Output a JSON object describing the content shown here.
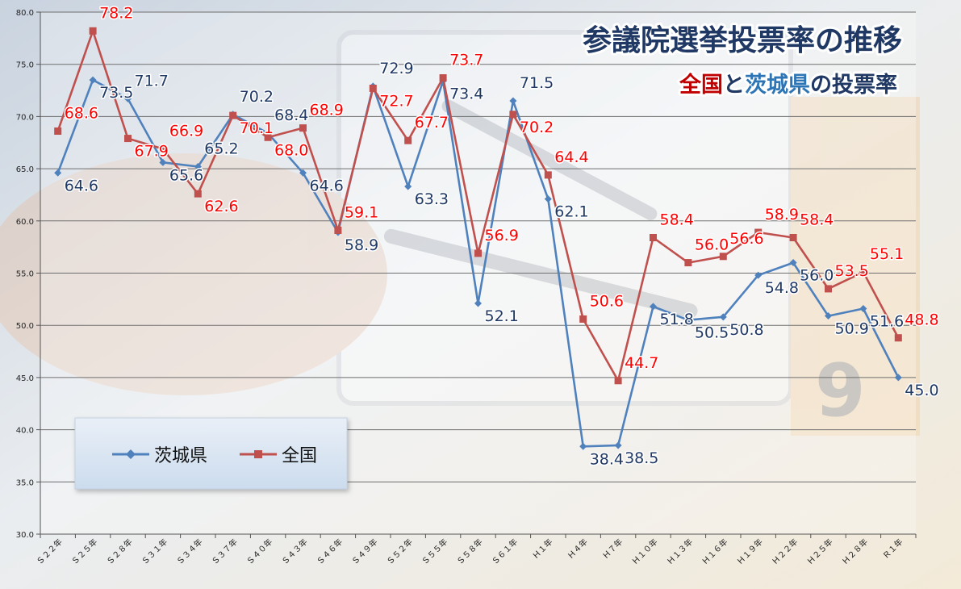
{
  "chart_data": {
    "type": "line",
    "title": "参議院選挙投票率の推移",
    "subtitle": {
      "part1": "全国",
      "part2": "と",
      "part3": "茨城県",
      "part4": "の投票率"
    },
    "xlabel": "",
    "ylabel": "",
    "ylim": [
      30.0,
      80.0
    ],
    "ytick_step": 5,
    "ytick_labels": [
      "30.0",
      "35.0",
      "40.0",
      "45.0",
      "50.0",
      "55.0",
      "60.0",
      "65.0",
      "70.0",
      "75.0",
      "80.0"
    ],
    "grid": true,
    "legend_position": "bottom-left",
    "categories": [
      "S22年",
      "S25年",
      "S28年",
      "S31年",
      "S34年",
      "S37年",
      "S40年",
      "S43年",
      "S46年",
      "S49年",
      "S52年",
      "S55年",
      "S58年",
      "S61年",
      "H1年",
      "H4年",
      "H7年",
      "H10年",
      "H13年",
      "H16年",
      "H19年",
      "H22年",
      "H25年",
      "H28年",
      "R1年"
    ],
    "category_labels": [
      "Ｓ２２年",
      "Ｓ２５年",
      "Ｓ２８年",
      "Ｓ３１年",
      "Ｓ３４年",
      "Ｓ３７年",
      "Ｓ４０年",
      "Ｓ４３年",
      "Ｓ４６年",
      "Ｓ４９年",
      "Ｓ５２年",
      "Ｓ５５年",
      "Ｓ５８年",
      "Ｓ６１年",
      "Ｈ１年",
      "Ｈ４年",
      "Ｈ７年",
      "Ｈ１０年",
      "Ｈ１３年",
      "Ｈ１６年",
      "Ｈ１９年",
      "Ｈ２２年",
      "Ｈ２５年",
      "Ｈ２８年",
      "Ｒ１年"
    ],
    "series": [
      {
        "name": "茨城県",
        "color": "#4f81bd",
        "label_color": "#1f3864",
        "marker": "diamond",
        "values": [
          64.6,
          73.5,
          71.7,
          65.6,
          65.2,
          70.2,
          68.4,
          64.6,
          58.9,
          72.9,
          63.3,
          73.4,
          52.1,
          71.5,
          62.1,
          38.4,
          38.5,
          51.8,
          50.5,
          50.8,
          54.8,
          56.0,
          50.9,
          51.6,
          45.0
        ],
        "labels": [
          "64.6",
          "73.5",
          "71.7",
          "65.6",
          "65.2",
          "70.2",
          "68.4",
          "64.6",
          "58.9",
          "72.9",
          "63.3",
          "73.4",
          "52.1",
          "71.5",
          "62.1",
          "38.4",
          "38.5",
          "51.8",
          "50.5",
          "50.8",
          "54.8",
          "56.0",
          "50.9",
          "51.6",
          "45.0"
        ]
      },
      {
        "name": "全国",
        "color": "#c0504d",
        "label_color": "#ff0000",
        "marker": "square",
        "values": [
          68.6,
          78.2,
          67.9,
          66.9,
          62.6,
          70.1,
          68.0,
          68.9,
          59.1,
          72.7,
          67.7,
          73.7,
          56.9,
          70.2,
          64.4,
          50.6,
          44.7,
          58.4,
          56.0,
          56.6,
          58.9,
          58.4,
          53.5,
          55.1,
          48.8
        ],
        "labels": [
          "68.6",
          "78.2",
          "67.9",
          "66.9",
          "62.6",
          "70.1",
          "68.0",
          "68.9",
          "59.1",
          "72.7",
          "67.7",
          "73.7",
          "56.9",
          "70.2",
          "64.4",
          "50.6",
          "44.7",
          "58.4",
          "56.0",
          "56.6",
          "58.9",
          "58.4",
          "53.5",
          "55.1",
          "48.8"
        ]
      }
    ]
  }
}
